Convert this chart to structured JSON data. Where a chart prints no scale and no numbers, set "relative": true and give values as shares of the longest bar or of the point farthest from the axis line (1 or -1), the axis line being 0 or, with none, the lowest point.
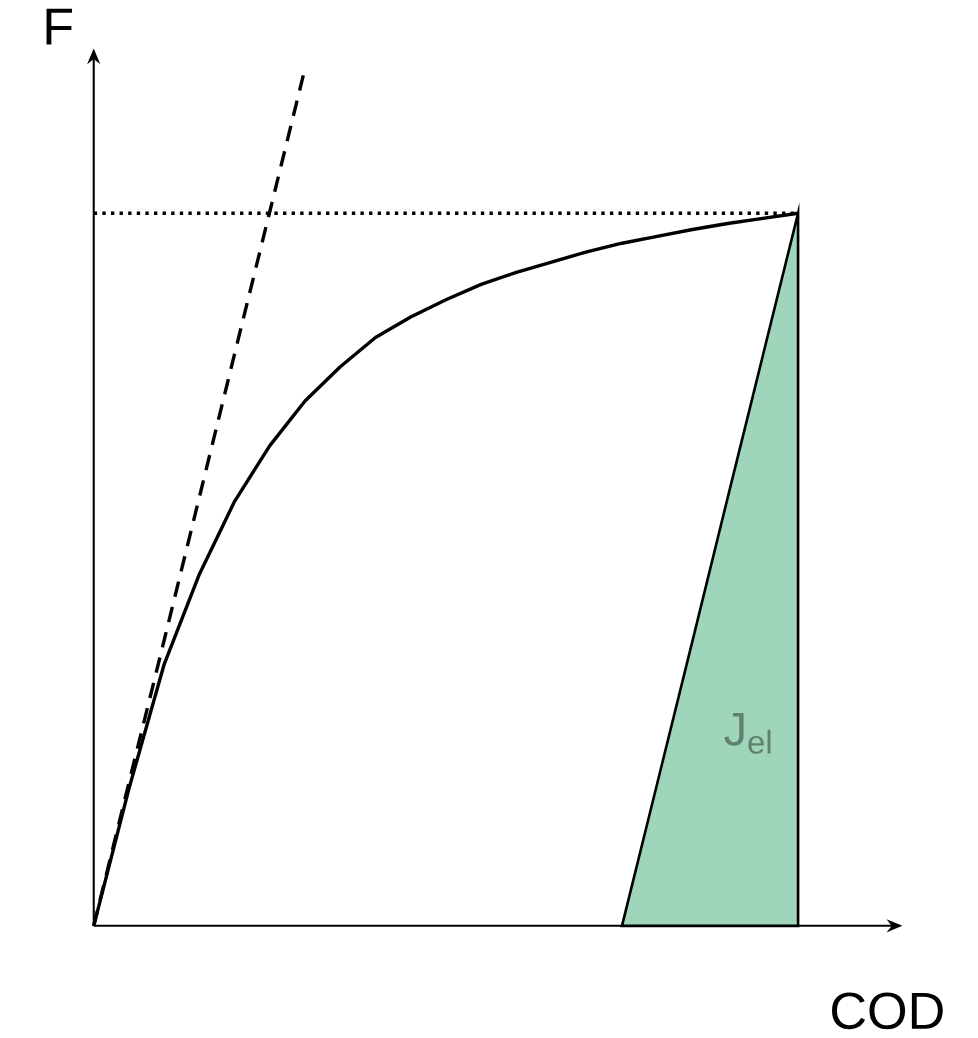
{
  "chart_data": {
    "type": "line",
    "relative": true,
    "xlabel": "COD",
    "ylabel": "F",
    "marker": "none",
    "tick_labels": false,
    "categories": [
      null,
      null,
      null,
      null,
      null,
      null,
      null,
      null,
      null,
      null,
      null,
      null,
      null,
      null,
      null,
      null,
      null,
      null,
      null,
      null,
      null
    ],
    "series": [
      {
        "color": "#000000",
        "line_style": "solid",
        "values": [
          0,
          0.16,
          0.305,
          0.41,
          0.495,
          0.56,
          0.612,
          0.652,
          0.686,
          0.71,
          0.73,
          0.748,
          0.762,
          0.774,
          0.786,
          0.796,
          0.804,
          0.812,
          0.819,
          0.825,
          0.831
        ]
      },
      {
        "color": "#000000",
        "line_style": "dashed",
        "values": [
          0,
          0.167,
          0.333,
          0.5,
          0.667,
          0.833,
          1,
          null,
          null,
          null,
          null,
          null,
          null,
          null,
          null,
          null,
          null,
          null,
          null,
          null,
          null
        ]
      },
      {
        "color": "#000000",
        "line_style": "dotted",
        "values": [
          0.831,
          0.831,
          0.831,
          0.831,
          0.831,
          0.831,
          0.831,
          0.831,
          0.831,
          0.831,
          0.831,
          0.831,
          0.831,
          0.831,
          0.831,
          0.831,
          0.831,
          0.831,
          0.831,
          0.831,
          0.831
        ]
      },
      {
        "type": "area",
        "color": "#9fd6bb",
        "values": [
          null,
          null,
          null,
          null,
          null,
          null,
          null,
          null,
          null,
          null,
          null,
          null,
          null,
          null,
          null,
          0,
          0.166,
          0.332,
          0.499,
          0.665,
          0.831
        ]
      }
    ],
    "annotations": [
      "J$_{el}$"
    ]
  }
}
